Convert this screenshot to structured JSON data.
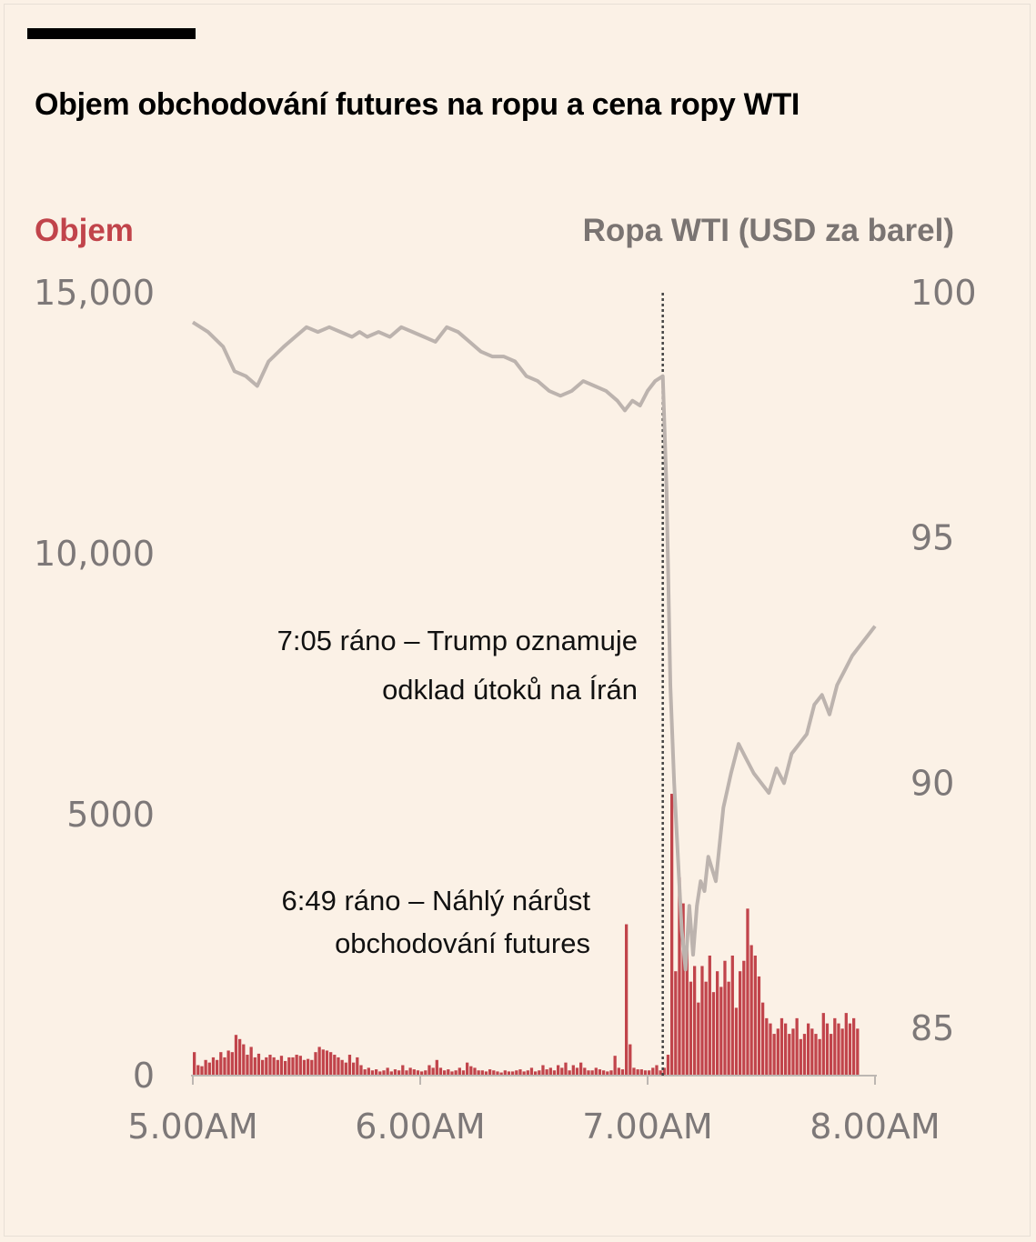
{
  "colors": {
    "volume": "#c1444b",
    "price": "#bcb3ae",
    "axis_text": "#7d7878",
    "background": "#fbf1e6"
  },
  "header": {
    "title": "Objem obchodování futures na ropu a cena ropy WTI"
  },
  "annotations": {
    "trump": {
      "line1": "7:05 ráno – Trump oznamuje",
      "line2": "odklad útoků na Írán"
    },
    "spike": {
      "line1": "6:49 ráno – Náhlý nárůst",
      "line2": "obchodování futures"
    }
  },
  "chart_data": {
    "type": "bar+line",
    "title": "Objem obchodování futures na ropu a cena ropy WTI",
    "x_tick_labels": [
      "5.00AM",
      "6.00AM",
      "7.00AM",
      "8.00AM"
    ],
    "x_unit": "minutes after 5:00 AM",
    "x_range": [
      0,
      180
    ],
    "left_axis": {
      "label": "Objem",
      "range": [
        0,
        15000
      ],
      "tick_values": [
        0,
        5000,
        10000,
        15000
      ],
      "tick_labels": [
        "0",
        "5000",
        "10,000",
        "15,000"
      ]
    },
    "right_axis": {
      "label": "Ropa WTI (USD za barel)",
      "range": [
        84,
        100
      ],
      "tick_values": [
        85,
        90,
        95,
        100
      ],
      "tick_labels": [
        "85",
        "90",
        "95",
        "100"
      ]
    },
    "event_line": {
      "x": 124,
      "label": "7:05 ráno"
    },
    "series": [
      {
        "name": "Objem",
        "type": "bar",
        "axis": "left",
        "x_start": 0,
        "x_step": 1,
        "values": [
          450,
          200,
          180,
          300,
          250,
          350,
          300,
          450,
          350,
          480,
          450,
          780,
          700,
          600,
          400,
          550,
          350,
          420,
          300,
          350,
          400,
          350,
          300,
          380,
          280,
          350,
          350,
          400,
          380,
          300,
          320,
          300,
          450,
          550,
          500,
          480,
          450,
          400,
          350,
          300,
          250,
          400,
          250,
          350,
          200,
          120,
          150,
          100,
          120,
          80,
          100,
          150,
          80,
          120,
          100,
          200,
          100,
          150,
          120,
          100,
          80,
          100,
          200,
          150,
          300,
          150,
          100,
          120,
          80,
          100,
          150,
          100,
          250,
          180,
          150,
          100,
          100,
          80,
          120,
          100,
          80,
          60,
          100,
          80,
          80,
          100,
          120,
          80,
          100,
          150,
          80,
          100,
          200,
          120,
          150,
          100,
          200,
          150,
          250,
          100,
          200,
          150,
          250,
          150,
          100,
          100,
          150,
          120,
          100,
          80,
          100,
          380,
          150,
          120,
          2900,
          600,
          150,
          120,
          120,
          100,
          100,
          150,
          200,
          100,
          150,
          400,
          5400,
          2000,
          3800,
          3300,
          2500,
          1800,
          2100,
          1400,
          2100,
          1800,
          2300,
          1600,
          2000,
          1700,
          2200,
          1800,
          2300,
          1300,
          2000,
          2200,
          3200,
          2500,
          2300,
          1900,
          1400,
          1100,
          1000,
          800,
          900,
          1100,
          1000,
          800,
          900,
          1100,
          700,
          800,
          1000,
          900,
          800,
          700,
          1200,
          1000,
          800,
          1100,
          1000,
          900,
          1200,
          1000,
          1100,
          900
        ]
      },
      {
        "name": "Ropa WTI (USD za barel)",
        "type": "line",
        "axis": "right",
        "x": [
          0,
          4,
          8,
          11,
          14,
          17,
          20,
          24,
          27,
          30,
          33,
          36,
          39,
          42,
          44,
          46,
          49,
          52,
          55,
          58,
          61,
          64,
          67,
          70,
          73,
          76,
          79,
          82,
          85,
          88,
          91,
          94,
          97,
          100,
          103,
          106,
          109,
          112,
          114,
          116,
          118,
          120,
          122,
          124,
          125,
          126,
          127,
          128,
          129,
          130,
          131,
          132,
          133,
          134,
          135,
          136,
          138,
          140,
          142,
          144,
          146,
          148,
          150,
          152,
          154,
          156,
          158,
          160,
          162,
          164,
          166,
          168,
          170,
          172,
          174,
          176,
          178,
          180
        ],
        "y": [
          99.4,
          99.2,
          98.9,
          98.4,
          98.3,
          98.1,
          98.6,
          98.9,
          99.1,
          99.3,
          99.2,
          99.3,
          99.2,
          99.1,
          99.2,
          99.1,
          99.2,
          99.1,
          99.3,
          99.2,
          99.1,
          99.0,
          99.3,
          99.2,
          99.0,
          98.8,
          98.7,
          98.7,
          98.6,
          98.3,
          98.2,
          98.0,
          97.9,
          98.0,
          98.2,
          98.1,
          98.0,
          97.8,
          97.6,
          97.8,
          97.7,
          98.0,
          98.2,
          98.3,
          96.0,
          92.0,
          90.0,
          88.5,
          87.0,
          86.2,
          87.5,
          86.5,
          87.5,
          88.0,
          87.8,
          88.5,
          88.0,
          89.5,
          90.2,
          90.8,
          90.5,
          90.2,
          90.0,
          89.8,
          90.3,
          90.0,
          90.6,
          90.8,
          91.0,
          91.6,
          91.8,
          91.4,
          92.0,
          92.3,
          92.6,
          92.8,
          93.0,
          93.2
        ]
      }
    ]
  }
}
